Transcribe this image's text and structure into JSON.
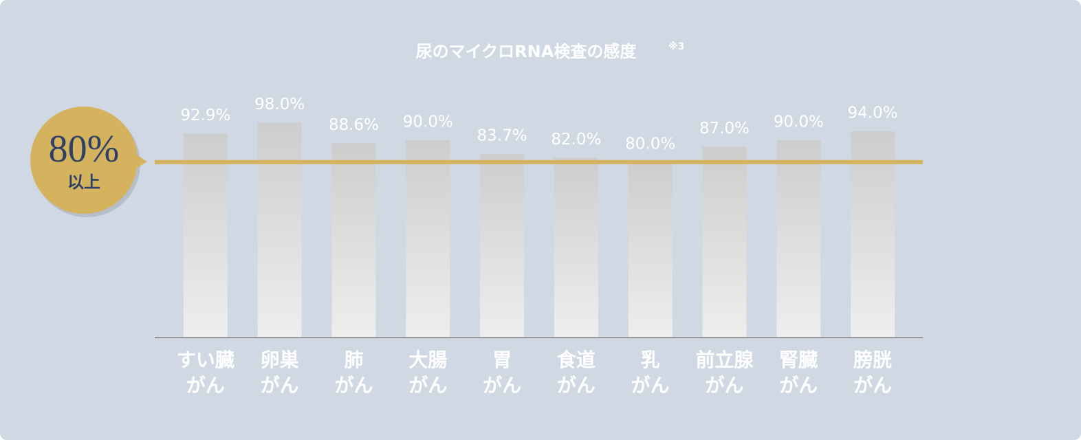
{
  "chart_data": {
    "type": "bar",
    "title": "尿のマイクロRNA検査の感度",
    "title_note": "※3",
    "categories": [
      "すい臓\nがん",
      "卵巣\nがん",
      "肺\nがん",
      "大腸\nがん",
      "胃\nがん",
      "食道\nがん",
      "乳\nがん",
      "前立腺\nがん",
      "腎臓\nがん",
      "膀胱\nがん"
    ],
    "values": [
      92.9,
      98.0,
      88.6,
      90.0,
      83.7,
      82.0,
      80.0,
      87.0,
      90.0,
      94.0
    ],
    "value_labels": [
      "92.9%",
      "98.0%",
      "88.6%",
      "90.0%",
      "83.7%",
      "82.0%",
      "80.0%",
      "87.0%",
      "90.0%",
      "94.0%"
    ],
    "ylim": [
      0,
      100
    ],
    "threshold": {
      "value": 80,
      "label": "80%",
      "sublabel": "以上",
      "color": "#d4b25e"
    }
  }
}
